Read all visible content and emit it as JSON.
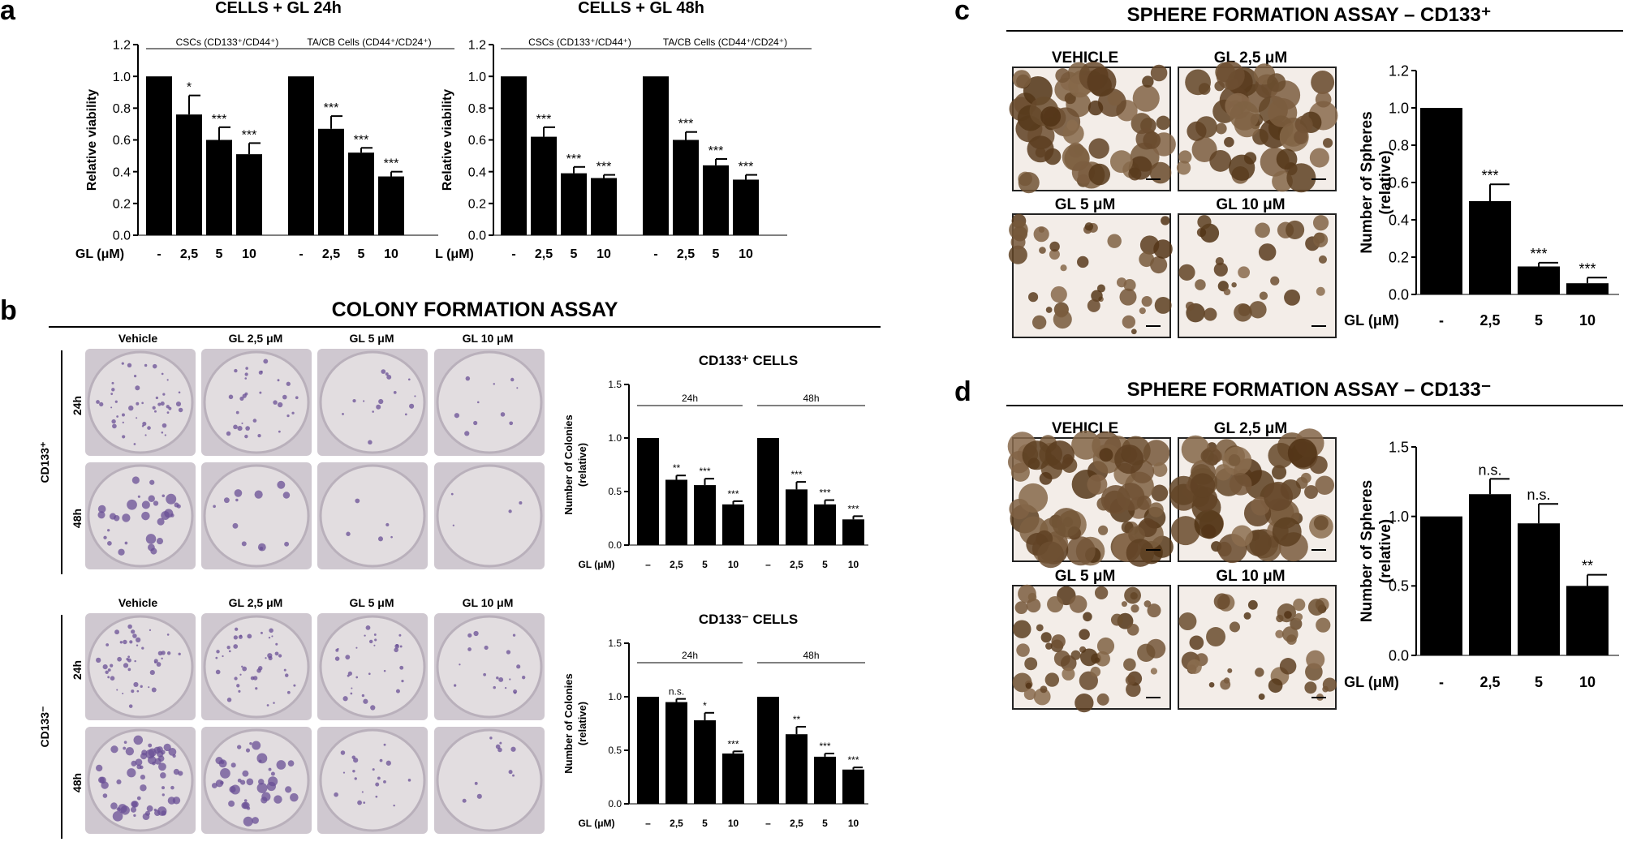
{
  "panel_letters": {
    "a": "a",
    "b": "b",
    "c": "c",
    "d": "d"
  },
  "panel_a": {
    "left_title": "CELLS + GL 24h",
    "right_title": "CELLS + GL 48h",
    "left_dose_label": "GL (μM)",
    "right_dose_label": "L (μM)",
    "ylabel": "Relative viability",
    "group_labels": [
      "CSCs (CD133⁺/CD44⁺)",
      "TA/CB Cells (CD44⁺/CD24⁺)"
    ]
  },
  "panel_b": {
    "title": "COLONY FORMATION ASSAY",
    "col_headers": [
      "Vehicle",
      "GL 2,5 μM",
      "GL 5 μM",
      "GL 10 μM"
    ],
    "row_labels": [
      "24h",
      "48h"
    ],
    "group_labels": [
      "CD133⁺",
      "CD133⁻"
    ],
    "chart_titles": [
      "CD133⁺ CELLS",
      "CD133⁻ CELLS"
    ],
    "ylabel": "Number of Colonies (relative)",
    "dose_label": "GL (μM)",
    "time_labels": [
      "24h",
      "48h"
    ]
  },
  "panel_c": {
    "title": "SPHERE FORMATION ASSAY – CD133⁺",
    "image_labels": [
      "VEHICLE",
      "GL 2,5 μM",
      "GL 5 μM",
      "GL 10 μM"
    ],
    "ylabel": "Number of Spheres (relative)",
    "dose_label": "GL (μM)"
  },
  "panel_d": {
    "title": "SPHERE FORMATION ASSAY – CD133⁻",
    "image_labels": [
      "VEHICLE",
      "GL 2,5 μM",
      "GL 5 μM",
      "GL 10 μM"
    ],
    "ylabel": "Number of Spheres (relative)",
    "dose_label": "GL (μM)"
  },
  "chart_data": [
    {
      "panel": "a",
      "type": "bar",
      "title": "CELLS + GL 24h",
      "ylabel": "Relative viability",
      "ylim": [
        0,
        1.2
      ],
      "yticks": [
        "0.0",
        "0.2",
        "0.4",
        "0.6",
        "0.8",
        "1.0",
        "1.2"
      ],
      "dose_label": "GL (μM)",
      "groups": [
        "CSCs (CD133⁺/CD44⁺)",
        "TA/CB Cells (CD44⁺/CD24⁺)"
      ],
      "categories": [
        "-",
        "2,5",
        "5",
        "10",
        "-",
        "2,5",
        "5",
        "10"
      ],
      "values": [
        1.0,
        0.76,
        0.6,
        0.51,
        1.0,
        0.67,
        0.52,
        0.37
      ],
      "errors": [
        0,
        0.12,
        0.08,
        0.07,
        0,
        0.08,
        0.03,
        0.03
      ],
      "annotations": [
        "",
        "*",
        "***",
        "***",
        "",
        "***",
        "***",
        "***"
      ]
    },
    {
      "panel": "a",
      "type": "bar",
      "title": "CELLS + GL 48h",
      "ylabel": "Relative viability",
      "ylim": [
        0,
        1.2
      ],
      "yticks": [
        "0.0",
        "0.2",
        "0.4",
        "0.6",
        "0.8",
        "1.0",
        "1.2"
      ],
      "dose_label": "L (μM)",
      "groups": [
        "CSCs (CD133⁺/CD44⁺)",
        "TA/CB Cells (CD44⁺/CD24⁺)"
      ],
      "categories": [
        "-",
        "2,5",
        "5",
        "10",
        "-",
        "2,5",
        "5",
        "10"
      ],
      "values": [
        1.0,
        0.62,
        0.39,
        0.36,
        1.0,
        0.6,
        0.44,
        0.35
      ],
      "errors": [
        0,
        0.06,
        0.04,
        0.02,
        0,
        0.05,
        0.04,
        0.03
      ],
      "annotations": [
        "",
        "***",
        "***",
        "***",
        "",
        "***",
        "***",
        "***"
      ]
    },
    {
      "panel": "b",
      "type": "bar",
      "title": "CD133⁺ CELLS",
      "ylabel": "Number of Colonies (relative)",
      "ylim": [
        0,
        1.5
      ],
      "yticks": [
        "0.0",
        "0.5",
        "1.0",
        "1.5"
      ],
      "dose_label": "GL (μM)",
      "groups": [
        "24h",
        "48h"
      ],
      "categories": [
        "–",
        "2,5",
        "5",
        "10",
        "–",
        "2,5",
        "5",
        "10"
      ],
      "values": [
        1.0,
        0.61,
        0.56,
        0.38,
        1.0,
        0.52,
        0.38,
        0.24
      ],
      "errors": [
        0,
        0.04,
        0.06,
        0.03,
        0,
        0.07,
        0.04,
        0.03
      ],
      "annotations": [
        "",
        "**",
        "***",
        "***",
        "",
        "***",
        "***",
        "***"
      ]
    },
    {
      "panel": "b",
      "type": "bar",
      "title": "CD133⁻ CELLS",
      "ylabel": "Number of Colonies (relative)",
      "ylim": [
        0,
        1.5
      ],
      "yticks": [
        "0.0",
        "0.5",
        "1.0",
        "1.5"
      ],
      "dose_label": "GL (μM)",
      "groups": [
        "24h",
        "48h"
      ],
      "categories": [
        "–",
        "2,5",
        "5",
        "10",
        "–",
        "2,5",
        "5",
        "10"
      ],
      "values": [
        1.0,
        0.95,
        0.78,
        0.47,
        1.0,
        0.65,
        0.44,
        0.32
      ],
      "errors": [
        0,
        0.03,
        0.07,
        0.02,
        0,
        0.07,
        0.03,
        0.02
      ],
      "annotations": [
        "",
        "n.s.",
        "*",
        "***",
        "",
        "**",
        "***",
        "***"
      ]
    },
    {
      "panel": "c",
      "type": "bar",
      "title": "SPHERE FORMATION ASSAY – CD133⁺",
      "ylabel": "Number of Spheres (relative)",
      "ylim": [
        0,
        1.2
      ],
      "yticks": [
        "0.0",
        "0.2",
        "0.4",
        "0.6",
        "0.8",
        "1.0",
        "1.2"
      ],
      "dose_label": "GL (μM)",
      "categories": [
        "-",
        "2,5",
        "5",
        "10"
      ],
      "values": [
        1.0,
        0.5,
        0.15,
        0.06
      ],
      "errors": [
        0,
        0.09,
        0.02,
        0.03
      ],
      "annotations": [
        "",
        "***",
        "***",
        "***"
      ]
    },
    {
      "panel": "d",
      "type": "bar",
      "title": "SPHERE FORMATION ASSAY – CD133⁻",
      "ylabel": "Number of Spheres (relative)",
      "ylim": [
        0,
        1.5
      ],
      "yticks": [
        "0.0",
        "0.5",
        "1.0",
        "1.5"
      ],
      "dose_label": "GL (μM)",
      "categories": [
        "-",
        "2,5",
        "5",
        "10"
      ],
      "values": [
        1.0,
        1.16,
        0.95,
        0.5
      ],
      "errors": [
        0,
        0.11,
        0.14,
        0.08
      ],
      "annotations": [
        "",
        "n.s.",
        "n.s.",
        "**"
      ]
    }
  ]
}
